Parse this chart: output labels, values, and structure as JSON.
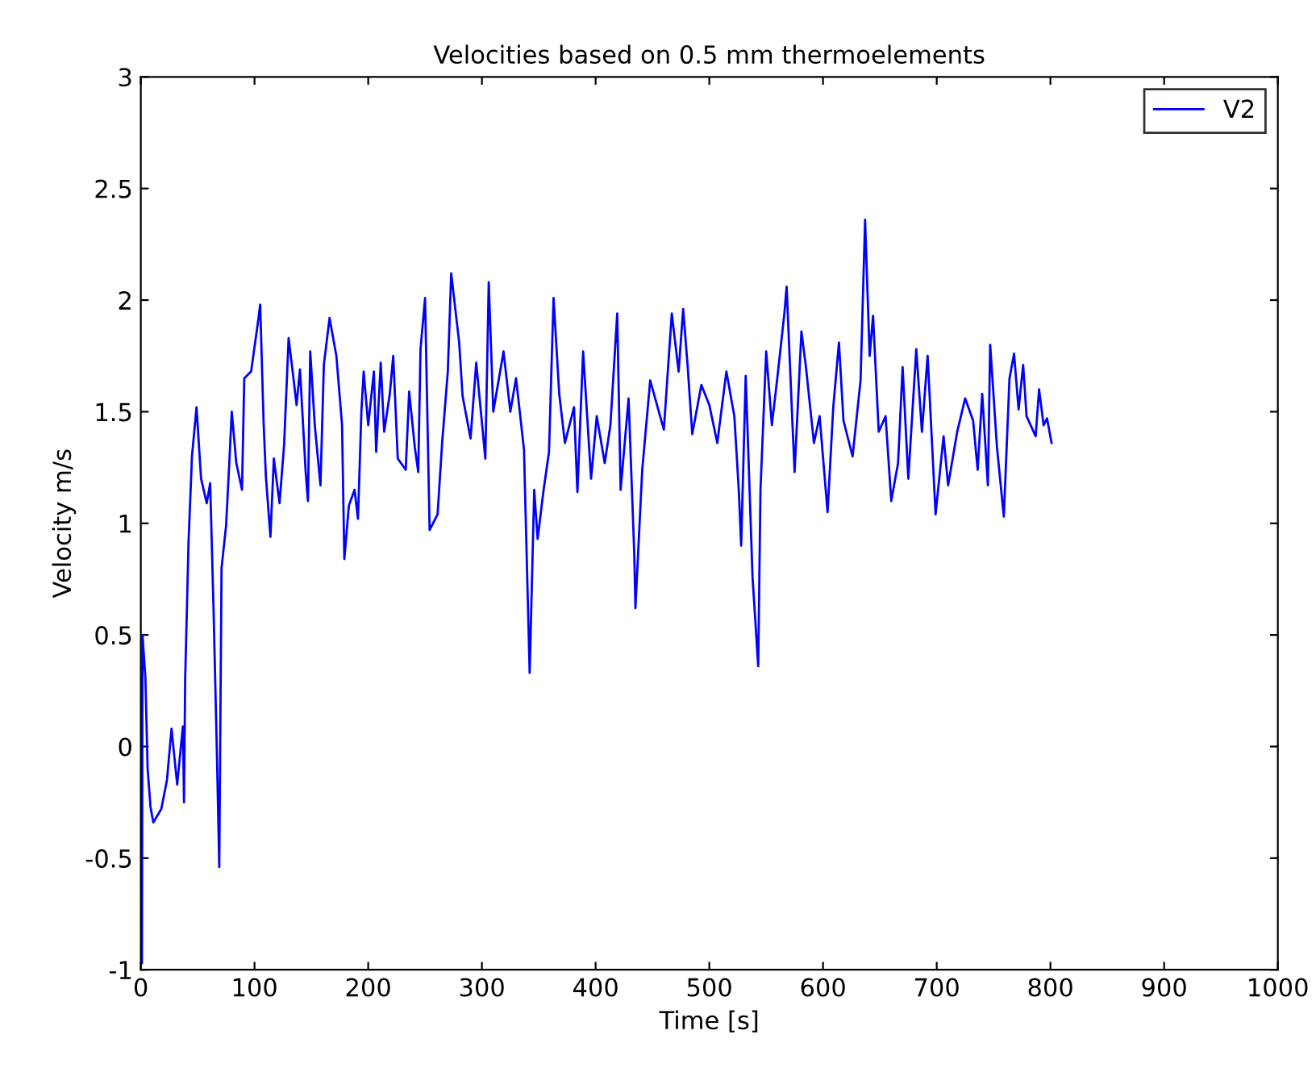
{
  "chart_data": {
    "type": "line",
    "title": "Velocities based on 0.5 mm thermoelements",
    "xlabel": "Time [s]",
    "ylabel": "Velocity m/s",
    "xlim": [
      0,
      1000
    ],
    "ylim": [
      -1,
      3
    ],
    "xticks": [
      0,
      100,
      200,
      300,
      400,
      500,
      600,
      700,
      800,
      900,
      1000
    ],
    "yticks": [
      -1,
      -0.5,
      0,
      0.5,
      1,
      1.5,
      2,
      2.5,
      3
    ],
    "grid": false,
    "legend": "top right",
    "marker": "none",
    "line_style": "solid",
    "series": [
      {
        "name": "V2",
        "color": "#0000ff",
        "x": [
          1,
          1.5,
          4,
          6,
          8.5,
          11,
          18,
          23,
          27,
          32,
          37,
          38,
          39,
          42,
          45,
          49,
          53,
          58,
          61,
          64,
          67,
          69,
          71,
          75,
          78,
          80,
          84,
          89,
          91,
          97,
          103,
          105,
          108,
          110,
          114,
          117,
          122,
          126,
          130,
          134,
          137,
          140,
          145,
          147,
          149,
          153,
          158,
          161,
          166,
          172,
          177,
          179,
          183,
          188,
          191,
          194,
          196,
          200,
          205,
          207,
          211,
          214,
          219,
          222,
          226,
          233,
          236,
          241,
          244,
          246,
          250,
          254,
          261,
          265,
          270,
          273,
          280,
          283,
          290,
          295,
          303,
          306,
          310,
          319,
          325,
          330,
          337,
          342,
          346,
          349,
          354,
          359,
          363,
          368,
          373,
          381,
          384,
          389,
          396,
          401,
          408,
          413,
          419,
          422,
          429,
          434,
          435,
          441,
          448,
          460,
          467,
          473,
          477,
          481,
          485,
          493,
          500,
          507,
          515,
          522,
          526,
          528,
          532,
          538,
          543,
          545,
          550,
          555,
          560,
          566,
          568,
          573,
          575,
          581,
          585,
          592,
          597,
          604,
          609,
          614,
          618,
          626,
          633,
          637,
          641,
          644,
          649,
          655,
          660,
          666,
          670,
          675,
          682,
          687,
          692,
          699,
          706,
          710,
          718,
          725,
          732,
          736,
          740,
          745,
          747,
          753,
          759,
          764,
          768,
          772,
          776,
          779,
          787,
          790,
          794,
          797,
          801
        ],
        "values": [
          -0.97,
          0.5,
          0.31,
          -0.1,
          -0.27,
          -0.34,
          -0.28,
          -0.15,
          0.08,
          -0.17,
          0.09,
          -0.25,
          0.3,
          0.92,
          1.3,
          1.52,
          1.2,
          1.09,
          1.18,
          0.61,
          -0.05,
          -0.54,
          0.8,
          0.99,
          1.29,
          1.5,
          1.27,
          1.15,
          1.65,
          1.68,
          1.9,
          1.98,
          1.45,
          1.21,
          0.94,
          1.29,
          1.09,
          1.35,
          1.83,
          1.66,
          1.53,
          1.69,
          1.23,
          1.1,
          1.77,
          1.44,
          1.17,
          1.71,
          1.92,
          1.75,
          1.44,
          0.84,
          1.08,
          1.15,
          1.02,
          1.5,
          1.68,
          1.44,
          1.68,
          1.32,
          1.72,
          1.41,
          1.58,
          1.75,
          1.29,
          1.24,
          1.59,
          1.34,
          1.23,
          1.78,
          2.01,
          0.97,
          1.04,
          1.36,
          1.68,
          2.12,
          1.81,
          1.57,
          1.38,
          1.72,
          1.29,
          2.08,
          1.5,
          1.77,
          1.5,
          1.65,
          1.33,
          0.33,
          1.15,
          0.93,
          1.14,
          1.32,
          2.01,
          1.58,
          1.36,
          1.52,
          1.14,
          1.77,
          1.2,
          1.48,
          1.27,
          1.44,
          1.94,
          1.15,
          1.56,
          0.86,
          0.62,
          1.24,
          1.64,
          1.42,
          1.94,
          1.68,
          1.96,
          1.7,
          1.4,
          1.62,
          1.53,
          1.36,
          1.68,
          1.48,
          1.14,
          0.9,
          1.66,
          0.76,
          0.36,
          1.15,
          1.77,
          1.44,
          1.66,
          1.94,
          2.06,
          1.46,
          1.23,
          1.86,
          1.7,
          1.36,
          1.48,
          1.05,
          1.52,
          1.81,
          1.46,
          1.3,
          1.64,
          2.36,
          1.75,
          1.93,
          1.41,
          1.48,
          1.1,
          1.27,
          1.7,
          1.2,
          1.78,
          1.41,
          1.75,
          1.04,
          1.39,
          1.17,
          1.41,
          1.56,
          1.46,
          1.24,
          1.58,
          1.17,
          1.8,
          1.34,
          1.03,
          1.65,
          1.76,
          1.51,
          1.71,
          1.48,
          1.39,
          1.6,
          1.44,
          1.47,
          1.36
        ]
      }
    ]
  }
}
